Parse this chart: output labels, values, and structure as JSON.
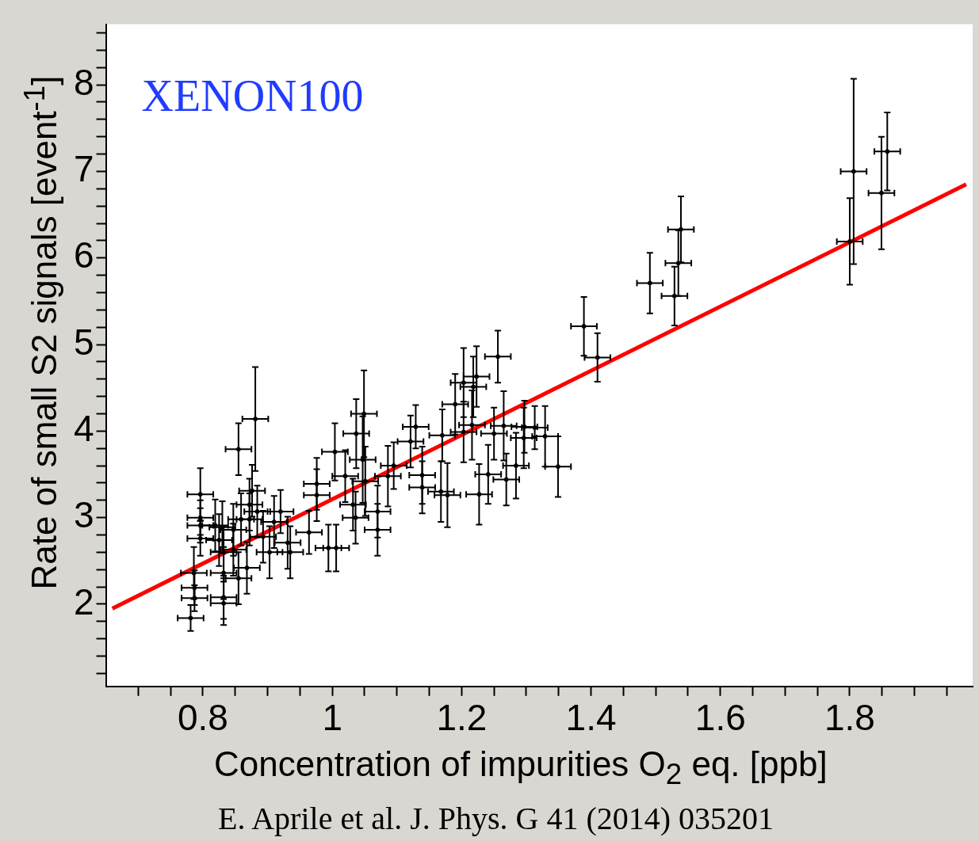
{
  "chart_data": {
    "type": "scatter",
    "xlabel": "Concentration of impurities O$_{2}$ eq. [ppb]",
    "ylabel": "Rate of small S2 signals [event$^{-1}$]",
    "annotations": [
      "XENON100",
      "E. Aprile et al. J. Phys. G 41 (2014) 035201"
    ],
    "xlim": [
      0.65,
      1.99
    ],
    "ylim": [
      1.05,
      8.7
    ],
    "xticks": [
      {
        "value": 0.7,
        "label": null
      },
      {
        "value": 0.75,
        "label": null
      },
      0.8,
      {
        "value": 0.85,
        "label": null
      },
      {
        "value": 0.9,
        "label": null
      },
      {
        "value": 0.95,
        "label": null
      },
      1,
      {
        "value": 1.05,
        "label": null
      },
      {
        "value": 1.1,
        "label": null
      },
      {
        "value": 1.15,
        "label": null
      },
      1.2,
      {
        "value": 1.25,
        "label": null
      },
      {
        "value": 1.3,
        "label": null
      },
      {
        "value": 1.35,
        "label": null
      },
      1.4,
      {
        "value": 1.45,
        "label": null
      },
      {
        "value": 1.5,
        "label": null
      },
      {
        "value": 1.55,
        "label": null
      },
      1.6,
      {
        "value": 1.65,
        "label": null
      },
      {
        "value": 1.7,
        "label": null
      },
      {
        "value": 1.75,
        "label": null
      },
      1.8,
      {
        "value": 1.85,
        "label": null
      },
      {
        "value": 1.9,
        "label": null
      },
      {
        "value": 1.95,
        "label": null
      }
    ],
    "yticks": [
      {
        "value": 1.2,
        "label": null
      },
      {
        "value": 1.4,
        "label": null
      },
      {
        "value": 1.6,
        "label": null
      },
      {
        "value": 1.8,
        "label": null
      },
      2,
      {
        "value": 2.2,
        "label": null
      },
      {
        "value": 2.4,
        "label": null
      },
      {
        "value": 2.6,
        "label": null
      },
      {
        "value": 2.8,
        "label": null
      },
      3,
      {
        "value": 3.2,
        "label": null
      },
      {
        "value": 3.4,
        "label": null
      },
      {
        "value": 3.6,
        "label": null
      },
      {
        "value": 3.8,
        "label": null
      },
      4,
      {
        "value": 4.2,
        "label": null
      },
      {
        "value": 4.4,
        "label": null
      },
      {
        "value": 4.6,
        "label": null
      },
      {
        "value": 4.8,
        "label": null
      },
      5,
      {
        "value": 5.2,
        "label": null
      },
      {
        "value": 5.4,
        "label": null
      },
      {
        "value": 5.6,
        "label": null
      },
      {
        "value": 5.8,
        "label": null
      },
      6,
      {
        "value": 6.2,
        "label": null
      },
      {
        "value": 6.4,
        "label": null
      },
      {
        "value": 6.6,
        "label": null
      },
      {
        "value": 6.8,
        "label": null
      },
      7,
      {
        "value": 7.2,
        "label": null
      },
      {
        "value": 7.4,
        "label": null
      },
      {
        "value": 7.6,
        "label": null
      },
      {
        "value": 7.8,
        "label": null
      },
      8,
      {
        "value": 8.2,
        "label": null
      },
      {
        "value": 8.4,
        "label": null
      },
      {
        "value": 8.6,
        "label": null
      }
    ],
    "grid": false,
    "legend": false,
    "series": [
      {
        "color": "#000000",
        "x": [
          1.389,
          1.41,
          1.491,
          1.529,
          1.539,
          1.535,
          1.806,
          1.8,
          1.849,
          1.858,
          1.256,
          1.223,
          1.218,
          1.203,
          1.19,
          1.216,
          1.203,
          1.17,
          1.129,
          1.121,
          1.095,
          1.086,
          1.049,
          1.037,
          1.004,
          1.02,
          1.047,
          1.051,
          1.139,
          1.139,
          1.168,
          1.178,
          1.227,
          1.241,
          1.269,
          1.284,
          1.297,
          1.313,
          1.25,
          1.265,
          1.296,
          1.329,
          1.349,
          1.07,
          1.036,
          1.07,
          1.032,
          0.994,
          1.006,
          0.976,
          0.976,
          0.781,
          0.787,
          0.787,
          0.786,
          0.796,
          0.796,
          0.796,
          0.796,
          0.83,
          0.832,
          0.832,
          0.832,
          0.832,
          0.847,
          0.847,
          0.855,
          0.876,
          0.872,
          0.872,
          0.868,
          0.855,
          0.881,
          0.91,
          0.903,
          0.92,
          0.931,
          0.935,
          0.964,
          0.819,
          0.825,
          0.859,
          0.884,
          0.893
        ],
        "values": [
          5.21,
          4.85,
          5.71,
          5.56,
          6.33,
          5.94,
          7.0,
          6.19,
          6.75,
          7.23,
          4.86,
          4.63,
          4.51,
          4.56,
          4.31,
          4.07,
          3.99,
          3.95,
          4.05,
          3.88,
          3.6,
          3.48,
          4.2,
          3.97,
          3.76,
          3.48,
          3.67,
          3.42,
          3.49,
          3.35,
          3.3,
          3.26,
          3.27,
          3.5,
          3.44,
          3.6,
          4.05,
          4.04,
          3.97,
          4.06,
          3.92,
          3.94,
          3.59,
          2.86,
          3.0,
          3.07,
          3.15,
          2.65,
          2.65,
          3.39,
          3.26,
          1.84,
          2.07,
          2.19,
          2.36,
          3.27,
          3.0,
          2.91,
          2.76,
          2.89,
          2.6,
          2.36,
          2.08,
          2.01,
          2.86,
          2.63,
          3.79,
          3.31,
          3.15,
          2.98,
          2.42,
          2.3,
          4.14,
          2.95,
          2.6,
          3.07,
          2.71,
          2.6,
          2.83,
          2.91,
          2.74,
          2.98,
          3.07,
          2.78
        ],
        "errors": [
          0.34,
          0.28,
          0.35,
          0.34,
          0.38,
          0.38,
          1.07,
          0.5,
          0.65,
          0.45,
          0.3,
          0.35,
          0.35,
          0.4,
          0.35,
          0.4,
          0.35,
          0.3,
          0.25,
          0.3,
          0.27,
          0.35,
          0.5,
          0.4,
          0.33,
          0.3,
          0.5,
          0.4,
          0.33,
          0.3,
          0.35,
          0.37,
          0.35,
          0.34,
          0.3,
          0.38,
          0.3,
          0.25,
          0.3,
          0.4,
          0.35,
          0.35,
          0.35,
          0.3,
          0.3,
          0.3,
          0.3,
          0.27,
          0.27,
          0.3,
          0.3,
          0.15,
          0.15,
          0.2,
          0.3,
          0.3,
          0.2,
          0.2,
          0.2,
          0.3,
          0.3,
          0.3,
          0.25,
          0.25,
          0.3,
          0.3,
          0.3,
          0.3,
          0.3,
          0.3,
          0.3,
          0.3,
          0.6,
          0.3,
          0.3,
          0.25,
          0.3,
          0.3,
          0.25,
          0.3,
          0.3,
          0.3,
          0.3,
          0.3
        ],
        "xerrors": [
          0.02,
          0.02,
          0.02,
          0.02,
          0.02,
          0.02,
          0.02,
          0.02,
          0.02,
          0.02,
          0.02,
          0.02,
          0.02,
          0.02,
          0.02,
          0.02,
          0.02,
          0.02,
          0.02,
          0.02,
          0.02,
          0.02,
          0.02,
          0.02,
          0.02,
          0.02,
          0.02,
          0.02,
          0.02,
          0.02,
          0.02,
          0.02,
          0.02,
          0.02,
          0.02,
          0.02,
          0.02,
          0.02,
          0.02,
          0.02,
          0.02,
          0.02,
          0.02,
          0.02,
          0.02,
          0.02,
          0.02,
          0.02,
          0.02,
          0.02,
          0.02,
          0.02,
          0.02,
          0.02,
          0.02,
          0.02,
          0.02,
          0.02,
          0.02,
          0.02,
          0.02,
          0.02,
          0.02,
          0.02,
          0.02,
          0.02,
          0.02,
          0.02,
          0.02,
          0.02,
          0.02,
          0.02,
          0.02,
          0.02,
          0.02,
          0.02,
          0.02,
          0.02,
          0.02,
          0.02,
          0.02,
          0.02,
          0.02,
          0.02
        ]
      },
      {
        "type": "line",
        "color": "#ff0000",
        "x": [
          0.66,
          1.98
        ],
        "values": [
          1.95,
          6.85
        ]
      }
    ]
  }
}
